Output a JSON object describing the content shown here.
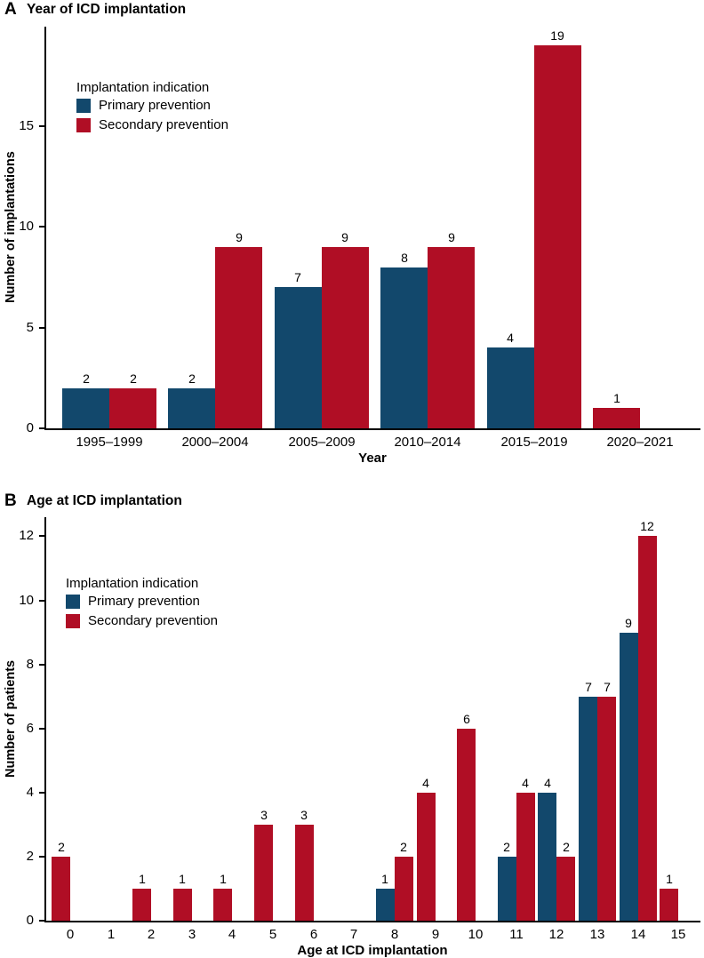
{
  "panels": {
    "a": {
      "letter": "A",
      "title": "Year of ICD implantation",
      "ylabel": "Number of implantations",
      "xlabel": "Year",
      "legend": {
        "title": "Implantation indication",
        "items": [
          {
            "label": "Primary prevention",
            "color": "#12486C"
          },
          {
            "label": "Secondary prevention",
            "color": "#B00E25"
          }
        ]
      }
    },
    "b": {
      "letter": "B",
      "title": "Age at ICD implantation",
      "ylabel": "Number of patients",
      "xlabel": "Age at ICD implantation",
      "legend": {
        "title": "Implantation indication",
        "items": [
          {
            "label": "Primary prevention",
            "color": "#12486C"
          },
          {
            "label": "Secondary prevention",
            "color": "#B00E25"
          }
        ]
      }
    }
  },
  "chart_data": [
    {
      "panel": "A",
      "type": "bar",
      "title": "Year of ICD implantation",
      "xlabel": "Year",
      "ylabel": "Number of implantations",
      "categories": [
        "1995–1999",
        "2000–2004",
        "2005–2009",
        "2010–2014",
        "2015–2019",
        "2020–2021"
      ],
      "series": [
        {
          "name": "Primary prevention",
          "color": "#12486C",
          "values": [
            2,
            2,
            7,
            8,
            4,
            null
          ]
        },
        {
          "name": "Secondary prevention",
          "color": "#B00E25",
          "values": [
            2,
            9,
            9,
            9,
            19,
            1
          ]
        }
      ],
      "yticks": [
        0,
        5,
        10,
        15
      ],
      "ylim": [
        0,
        19.8
      ],
      "grid": false,
      "bar_labels": true,
      "legend_title": "Implantation indication",
      "legend_position": "upper-left-inside"
    },
    {
      "panel": "B",
      "type": "bar",
      "title": "Age at ICD implantation",
      "xlabel": "Age at ICD implantation",
      "ylabel": "Number of patients",
      "categories": [
        "0",
        "1",
        "2",
        "3",
        "4",
        "5",
        "6",
        "7",
        "8",
        "9",
        "10",
        "11",
        "12",
        "13",
        "14",
        "15"
      ],
      "series": [
        {
          "name": "Primary prevention",
          "color": "#12486C",
          "values": [
            null,
            null,
            null,
            null,
            null,
            null,
            null,
            null,
            1,
            null,
            null,
            2,
            4,
            7,
            9,
            null
          ]
        },
        {
          "name": "Secondary prevention",
          "color": "#B00E25",
          "values": [
            2,
            null,
            1,
            1,
            1,
            3,
            3,
            null,
            2,
            4,
            6,
            4,
            2,
            7,
            12,
            1
          ]
        }
      ],
      "yticks": [
        0,
        2,
        4,
        6,
        8,
        10,
        12
      ],
      "ylim": [
        0,
        12.7
      ],
      "grid": false,
      "bar_labels": true,
      "legend_title": "Implantation indication",
      "legend_position": "upper-left-inside"
    }
  ]
}
